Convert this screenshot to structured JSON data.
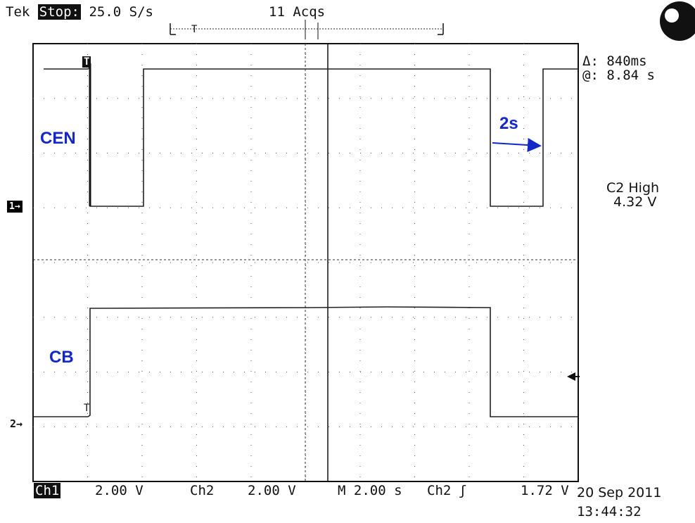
{
  "header": {
    "brand": "Tek",
    "run_state": "Stop:",
    "sample_rate": "25.0 S/s",
    "acquisitions": "11 Acqs"
  },
  "measurements": {
    "delta": "Δ: 840ms",
    "at": "@: 8.84 s",
    "trigger_label": "C2 High",
    "trigger_value": "4.32 V"
  },
  "annotations": {
    "cen": "CEN",
    "cb": "CB",
    "period": "2s"
  },
  "channel_markers": {
    "ch1": "1→",
    "ch2": "2→",
    "trigger_T": "T"
  },
  "footer": {
    "ch1_label": "Ch1",
    "ch1_scale": "2.00 V",
    "ch2_label": "Ch2",
    "ch2_scale": "2.00 V",
    "timebase": "M  2.00 s",
    "trig_source": "Ch2",
    "trig_slope": "ʃ",
    "trig_level": "1.72 V",
    "date": "20 Sep 2011",
    "time": "13:44:32"
  },
  "colors": {
    "trace": "#222222",
    "annotation": "#1428c8",
    "grid": "#333333"
  }
}
